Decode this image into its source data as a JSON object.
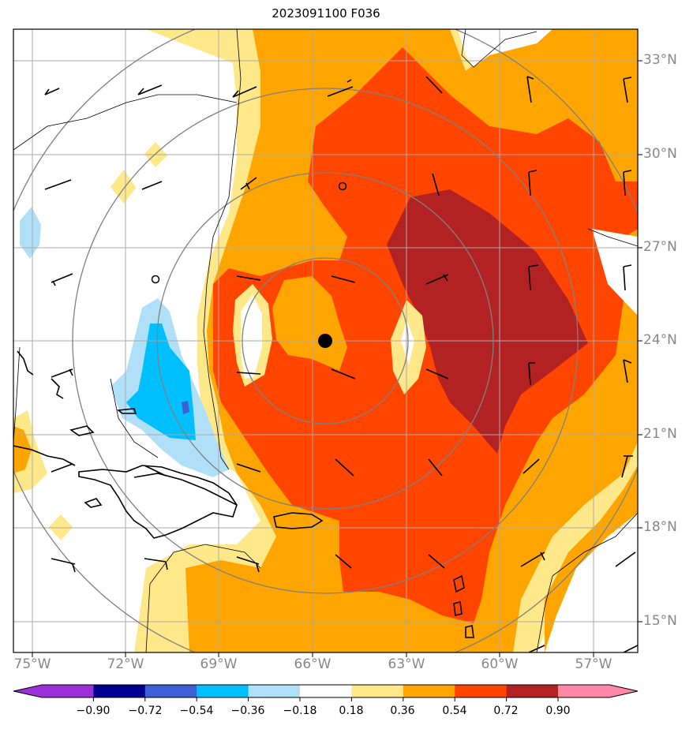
{
  "title": "2023091100 F036",
  "lat_labels": [
    "33°N",
    "30°N",
    "27°N",
    "24°N",
    "21°N",
    "18°N",
    "15°N"
  ],
  "lon_labels": [
    "75°W",
    "72°W",
    "69°W",
    "66°W",
    "63°W",
    "60°W",
    "57°W"
  ],
  "colorbar": {
    "ticks": [
      "−0.90",
      "−0.72",
      "−0.54",
      "−0.36",
      "−0.18",
      "0.18",
      "0.36",
      "0.54",
      "0.72",
      "0.90"
    ],
    "colors": [
      "#9b30d9",
      "#000090",
      "#3c5fd3",
      "#00bfff",
      "#b0e0f8",
      "#ffffff",
      "#ffe88a",
      "#ffa500",
      "#ff4500",
      "#b22222",
      "#ff88aa"
    ]
  },
  "storm_center": {
    "lat": 24.0,
    "lon": -65.6
  },
  "range_rings_count": 4
}
